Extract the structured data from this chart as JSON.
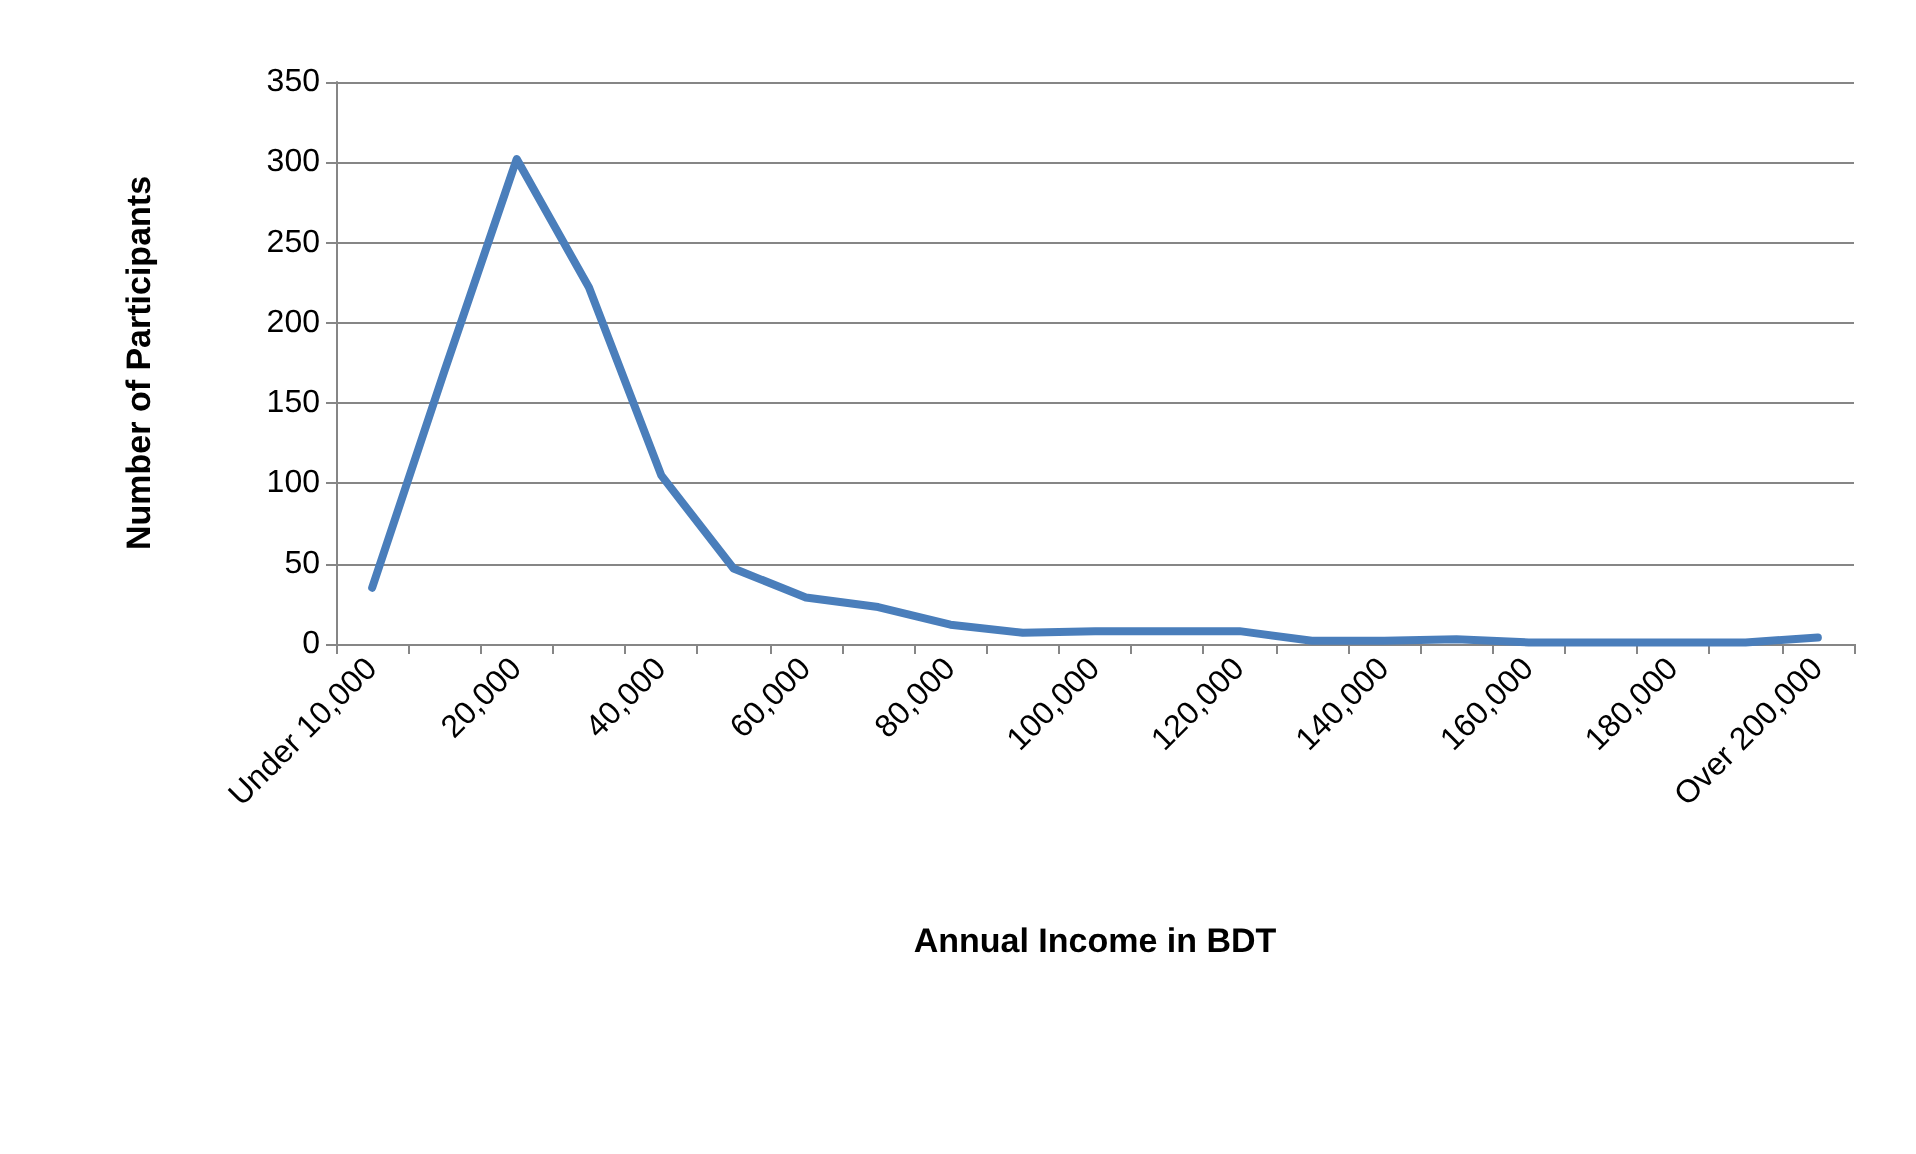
{
  "chart_data": {
    "type": "line",
    "xlabel": "Annual Income in BDT",
    "ylabel": "Number of Participants",
    "categories": [
      "Under 10,000",
      null,
      "20,000",
      null,
      "40,000",
      null,
      "60,000",
      null,
      "80,000",
      null,
      "100,000",
      null,
      "120,000",
      null,
      "140,000",
      null,
      "160,000",
      null,
      "180,000",
      null,
      "Over 200,000"
    ],
    "series": [
      {
        "color": "#4a7ebb",
        "values": [
          35,
          170,
          302,
          222,
          105,
          47,
          29,
          23,
          12,
          7,
          8,
          8,
          8,
          2,
          2,
          3,
          1,
          1,
          1,
          1,
          4
        ]
      }
    ],
    "ylim": [
      0,
      350
    ],
    "yticks": [
      0,
      50,
      100,
      150,
      200,
      250,
      300,
      350
    ],
    "grid": "y",
    "marker": "none",
    "line_style": "solid"
  }
}
